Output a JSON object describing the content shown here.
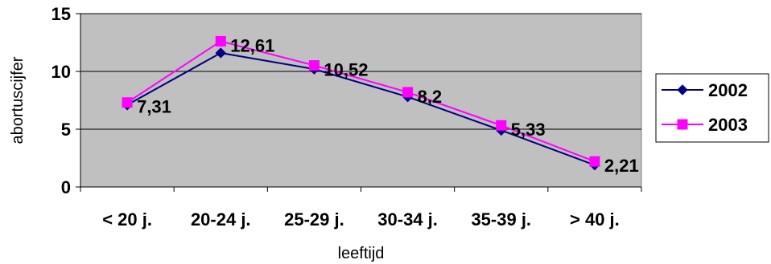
{
  "chart_data": {
    "type": "line",
    "categories": [
      "< 20 j.",
      "20-24 j.",
      "25-29 j.",
      "30-34 j.",
      "35-39 j.",
      "> 40 j."
    ],
    "series": [
      {
        "name": "2002",
        "values": [
          7.1,
          11.6,
          10.2,
          7.8,
          4.9,
          1.9
        ],
        "color": "#000080",
        "marker": "diamond"
      },
      {
        "name": "2003",
        "values": [
          7.31,
          12.61,
          10.52,
          8.2,
          5.33,
          2.21
        ],
        "color": "#FF00FF",
        "marker": "square"
      }
    ],
    "data_labels": [
      "7,31",
      "12,61",
      "10,52",
      "8,2",
      "5,33",
      "2,21"
    ],
    "data_label_series": "2003",
    "title": "",
    "xlabel": "leeftijd",
    "ylabel": "abortuscijfer",
    "ylim": [
      0,
      15
    ],
    "yticks": [
      0,
      5,
      10,
      15
    ],
    "ytick_labels": [
      "0",
      "5",
      "10",
      "15"
    ],
    "grid": true,
    "plot_background": "#C0C0C0",
    "legend_position": "right"
  }
}
